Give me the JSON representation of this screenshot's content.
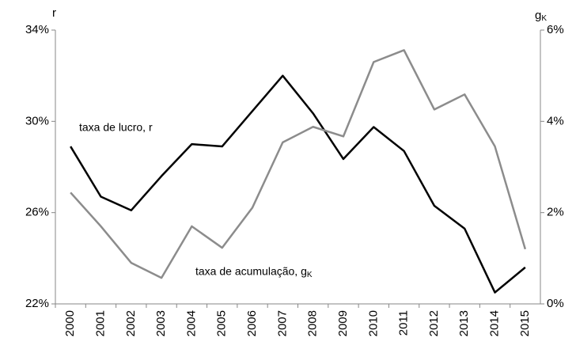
{
  "chart_data": {
    "type": "line",
    "y_label": "r",
    "y2_label": "gK",
    "categories": [
      "2000",
      "2001",
      "2002",
      "2003",
      "2004",
      "2005",
      "2006",
      "2007",
      "2008",
      "2009",
      "2010",
      "2011",
      "2012",
      "2013",
      "2014",
      "2015"
    ],
    "series": [
      {
        "name": "taxa de lucro, r",
        "color": "#000000",
        "values": [
          28.9,
          26.7,
          26.1,
          27.6,
          29.0,
          28.9,
          30.45,
          32.0,
          30.35,
          28.35,
          29.75,
          28.7,
          26.3,
          25.3,
          22.5,
          23.6
        ]
      },
      {
        "name": "taxa de acumulação, gK",
        "color": "#8c8c8c",
        "axis": "y2",
        "values": [
          2.44,
          1.7,
          0.9,
          0.57,
          1.7,
          1.23,
          2.11,
          3.54,
          3.88,
          3.67,
          5.3,
          5.56,
          4.26,
          4.59,
          3.45,
          1.2
        ]
      }
    ],
    "ylim": [
      22,
      34
    ],
    "yticks": [
      {
        "value": 22,
        "label": "22%"
      },
      {
        "value": 26,
        "label": "26%"
      },
      {
        "value": 30,
        "label": "30%"
      },
      {
        "value": 34,
        "label": "34%"
      }
    ],
    "y2lim": [
      0,
      6
    ],
    "y2ticks": [
      {
        "value": 0,
        "label": "0%"
      },
      {
        "value": 2,
        "label": "2%"
      },
      {
        "value": 4,
        "label": "4%"
      },
      {
        "value": 6,
        "label": "6%"
      }
    ],
    "grid": false
  }
}
